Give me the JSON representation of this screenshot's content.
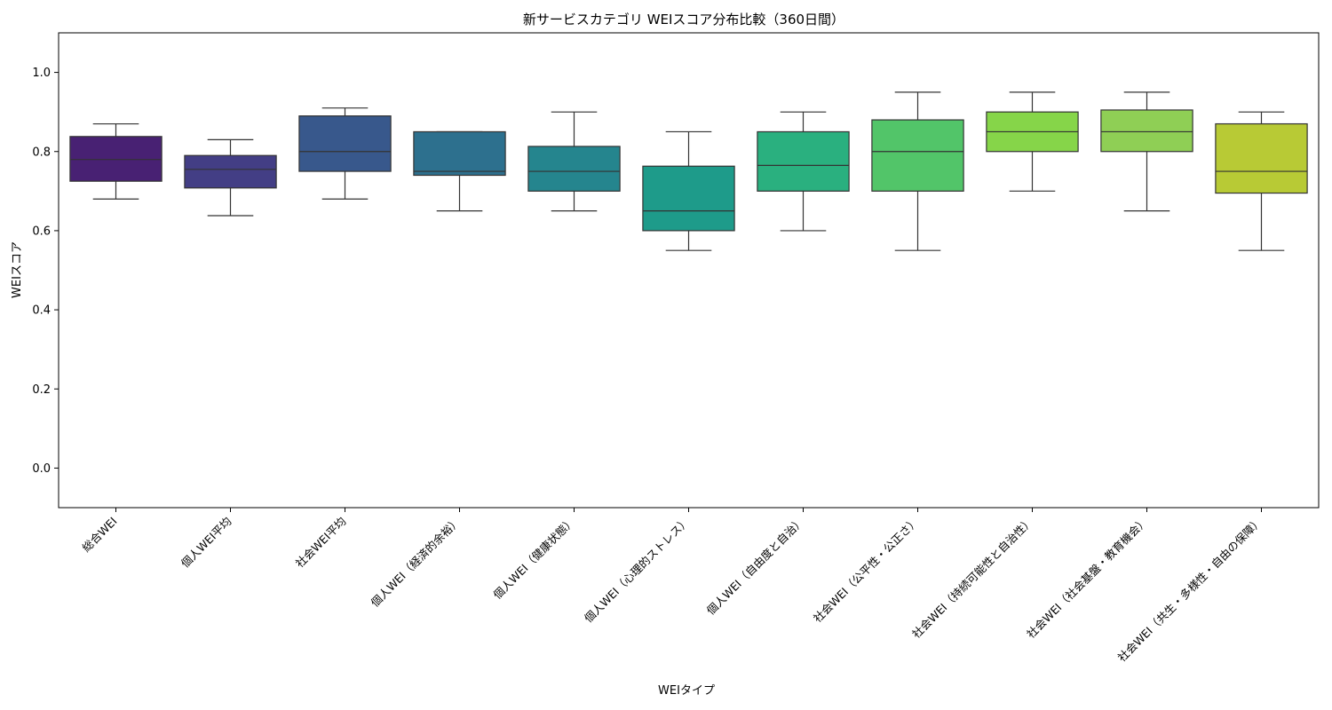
{
  "chart_data": {
    "type": "box",
    "title": "新サービスカテゴリ WEIスコア分布比較（360日間）",
    "xlabel": "WEIタイプ",
    "ylabel": "WEIスコア",
    "ylim": [
      -0.1,
      1.1
    ],
    "yticks": [
      "0.0",
      "0.2",
      "0.4",
      "0.6",
      "0.8",
      "1.0"
    ],
    "grid": false,
    "categories": [
      "総合WEI",
      "個人WEI平均",
      "社会WEI平均",
      "個人WEI（経済的余裕）",
      "個人WEI（健康状態）",
      "個人WEI（心理的ストレス）",
      "個人WEI（自由度と自治）",
      "社会WEI（公平性・公正さ）",
      "社会WEI（持続可能性と自治性）",
      "社会WEI（社会基盤・教育機会）",
      "社会WEI（共生・多様性・自由の保障）"
    ],
    "boxes": [
      {
        "min": 0.68,
        "q1": 0.725,
        "median": 0.78,
        "q3": 0.838,
        "max": 0.87,
        "color": "#482173"
      },
      {
        "min": 0.638,
        "q1": 0.708,
        "median": 0.755,
        "q3": 0.79,
        "max": 0.83,
        "color": "#433e85"
      },
      {
        "min": 0.68,
        "q1": 0.75,
        "median": 0.8,
        "q3": 0.89,
        "max": 0.91,
        "color": "#38588c"
      },
      {
        "min": 0.65,
        "q1": 0.74,
        "median": 0.75,
        "q3": 0.85,
        "max": 0.85,
        "color": "#2d708e"
      },
      {
        "min": 0.65,
        "q1": 0.7,
        "median": 0.75,
        "q3": 0.813,
        "max": 0.9,
        "color": "#25858e"
      },
      {
        "min": 0.55,
        "q1": 0.6,
        "median": 0.65,
        "q3": 0.763,
        "max": 0.85,
        "color": "#1e9b8a"
      },
      {
        "min": 0.6,
        "q1": 0.7,
        "median": 0.765,
        "q3": 0.85,
        "max": 0.9,
        "color": "#2ab07f"
      },
      {
        "min": 0.55,
        "q1": 0.7,
        "median": 0.8,
        "q3": 0.88,
        "max": 0.95,
        "color": "#52c569"
      },
      {
        "min": 0.7,
        "q1": 0.8,
        "median": 0.85,
        "q3": 0.9,
        "max": 0.95,
        "color": "#86d549"
      },
      {
        "min": 0.65,
        "q1": 0.8,
        "median": 0.85,
        "q3": 0.905,
        "max": 0.95,
        "color": "#8fcf55"
      },
      {
        "min": 0.55,
        "q1": 0.695,
        "median": 0.75,
        "q3": 0.87,
        "max": 0.9,
        "color": "#b8ca35"
      }
    ]
  }
}
